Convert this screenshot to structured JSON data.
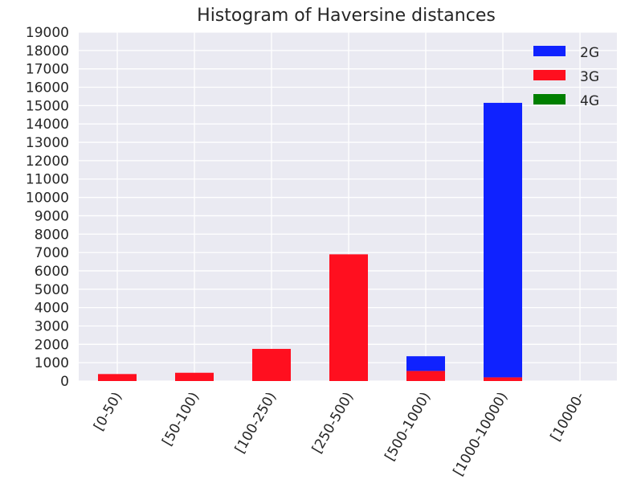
{
  "chart_data": {
    "type": "bar",
    "stacked": true,
    "title": "Histogram of Haversine distances",
    "xlabel": "",
    "ylabel": "",
    "ylim": [
      0,
      19000
    ],
    "yticks": [
      0,
      1000,
      2000,
      3000,
      4000,
      5000,
      6000,
      7000,
      8000,
      9000,
      10000,
      11000,
      12000,
      13000,
      14000,
      15000,
      16000,
      17000,
      18000,
      19000
    ],
    "categories": [
      "[0-50)",
      "[50-100)",
      "[100-250)",
      "[250-500)",
      "[500-1000)",
      "[1000-10000)",
      "[10000-"
    ],
    "series": [
      {
        "name": "3G",
        "color": "#ff0f1f",
        "values": [
          380,
          450,
          1750,
          6900,
          550,
          200,
          0
        ]
      },
      {
        "name": "2G",
        "color": "#0f22ff",
        "values": [
          0,
          0,
          0,
          0,
          800,
          14950,
          0
        ]
      },
      {
        "name": "4G",
        "color": "#007f00",
        "values": [
          0,
          0,
          0,
          0,
          0,
          0,
          0
        ]
      }
    ],
    "legend": {
      "position": "top-right",
      "order": [
        "2G",
        "3G",
        "4G"
      ]
    },
    "grid": true,
    "background": "#eaeaf2"
  }
}
